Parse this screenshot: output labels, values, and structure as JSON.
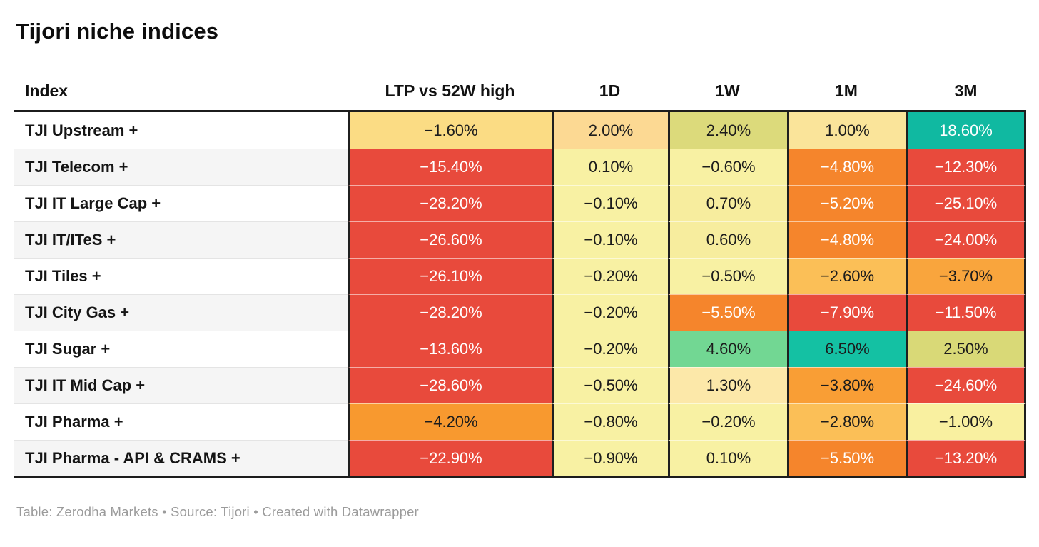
{
  "title": "Tijori niche indices",
  "footer": "Table: Zerodha Markets • Source: Tijori • Created with Datawrapper",
  "palette": {
    "strong_negative_red": "#e84a3c",
    "negative_orange": "#f5852c",
    "mild_negative_amber": "#f8992f",
    "light_amber": "#fbbf57",
    "near_zero_yellow": "#f8f1a3",
    "mild_positive_olive": "#dcda7b",
    "positive_green": "#72d793",
    "strong_positive_teal": "#10b9a1"
  },
  "chart_data": {
    "type": "table",
    "title": "Tijori niche indices",
    "columns": [
      "Index",
      "LTP vs 52W high",
      "1D",
      "1W",
      "1M",
      "3M"
    ],
    "rows": [
      {
        "name": "TJI Upstream +",
        "cells": [
          {
            "value": "−1.60%",
            "bg": "#fbdc84",
            "fg": "#1c1c1c"
          },
          {
            "value": "2.00%",
            "bg": "#fcd993",
            "fg": "#1c1c1c"
          },
          {
            "value": "2.40%",
            "bg": "#dcda7b",
            "fg": "#1c1c1c"
          },
          {
            "value": "1.00%",
            "bg": "#fae49a",
            "fg": "#1c1c1c"
          },
          {
            "value": "18.60%",
            "bg": "#10b9a1",
            "fg": "#ffffff"
          }
        ]
      },
      {
        "name": "TJI Telecom +",
        "cells": [
          {
            "value": "−15.40%",
            "bg": "#e84a3c",
            "fg": "#ffffff"
          },
          {
            "value": "0.10%",
            "bg": "#f8f1a3",
            "fg": "#1c1c1c"
          },
          {
            "value": "−0.60%",
            "bg": "#f8f1a3",
            "fg": "#1c1c1c"
          },
          {
            "value": "−4.80%",
            "bg": "#f5852c",
            "fg": "#ffffff"
          },
          {
            "value": "−12.30%",
            "bg": "#e84a3c",
            "fg": "#ffffff"
          }
        ]
      },
      {
        "name": "TJI IT Large Cap +",
        "cells": [
          {
            "value": "−28.20%",
            "bg": "#e84a3c",
            "fg": "#ffffff"
          },
          {
            "value": "−0.10%",
            "bg": "#f8f1a3",
            "fg": "#1c1c1c"
          },
          {
            "value": "0.70%",
            "bg": "#f7ed9e",
            "fg": "#1c1c1c"
          },
          {
            "value": "−5.20%",
            "bg": "#f5852c",
            "fg": "#ffffff"
          },
          {
            "value": "−25.10%",
            "bg": "#e84a3c",
            "fg": "#ffffff"
          }
        ]
      },
      {
        "name": "TJI IT/ITeS +",
        "cells": [
          {
            "value": "−26.60%",
            "bg": "#e84a3c",
            "fg": "#ffffff"
          },
          {
            "value": "−0.10%",
            "bg": "#f8f1a3",
            "fg": "#1c1c1c"
          },
          {
            "value": "0.60%",
            "bg": "#f7ed9e",
            "fg": "#1c1c1c"
          },
          {
            "value": "−4.80%",
            "bg": "#f5852c",
            "fg": "#ffffff"
          },
          {
            "value": "−24.00%",
            "bg": "#e84a3c",
            "fg": "#ffffff"
          }
        ]
      },
      {
        "name": "TJI Tiles +",
        "cells": [
          {
            "value": "−26.10%",
            "bg": "#e84a3c",
            "fg": "#ffffff"
          },
          {
            "value": "−0.20%",
            "bg": "#f8f1a3",
            "fg": "#1c1c1c"
          },
          {
            "value": "−0.50%",
            "bg": "#f8f1a3",
            "fg": "#1c1c1c"
          },
          {
            "value": "−2.60%",
            "bg": "#fbbf57",
            "fg": "#1c1c1c"
          },
          {
            "value": "−3.70%",
            "bg": "#f9a53d",
            "fg": "#1c1c1c"
          }
        ]
      },
      {
        "name": "TJI City Gas +",
        "cells": [
          {
            "value": "−28.20%",
            "bg": "#e84a3c",
            "fg": "#ffffff"
          },
          {
            "value": "−0.20%",
            "bg": "#f8f1a3",
            "fg": "#1c1c1c"
          },
          {
            "value": "−5.50%",
            "bg": "#f5852c",
            "fg": "#ffffff"
          },
          {
            "value": "−7.90%",
            "bg": "#e84a3c",
            "fg": "#ffffff"
          },
          {
            "value": "−11.50%",
            "bg": "#e84a3c",
            "fg": "#ffffff"
          }
        ]
      },
      {
        "name": "TJI Sugar +",
        "cells": [
          {
            "value": "−13.60%",
            "bg": "#e84a3c",
            "fg": "#ffffff"
          },
          {
            "value": "−0.20%",
            "bg": "#f8f1a3",
            "fg": "#1c1c1c"
          },
          {
            "value": "4.60%",
            "bg": "#72d793",
            "fg": "#1c1c1c"
          },
          {
            "value": "6.50%",
            "bg": "#14c1a3",
            "fg": "#1c1c1c"
          },
          {
            "value": "2.50%",
            "bg": "#d9d977",
            "fg": "#1c1c1c"
          }
        ]
      },
      {
        "name": "TJI IT Mid Cap +",
        "cells": [
          {
            "value": "−28.60%",
            "bg": "#e84a3c",
            "fg": "#ffffff"
          },
          {
            "value": "−0.50%",
            "bg": "#f8f1a3",
            "fg": "#1c1c1c"
          },
          {
            "value": "1.30%",
            "bg": "#fce8a9",
            "fg": "#1c1c1c"
          },
          {
            "value": "−3.80%",
            "bg": "#f99e35",
            "fg": "#1c1c1c"
          },
          {
            "value": "−24.60%",
            "bg": "#e84a3c",
            "fg": "#ffffff"
          }
        ]
      },
      {
        "name": "TJI Pharma +",
        "cells": [
          {
            "value": "−4.20%",
            "bg": "#f8992f",
            "fg": "#1c1c1c"
          },
          {
            "value": "−0.80%",
            "bg": "#f8f1a3",
            "fg": "#1c1c1c"
          },
          {
            "value": "−0.20%",
            "bg": "#f8f1a3",
            "fg": "#1c1c1c"
          },
          {
            "value": "−2.80%",
            "bg": "#fbbf57",
            "fg": "#1c1c1c"
          },
          {
            "value": "−1.00%",
            "bg": "#f9f0a0",
            "fg": "#1c1c1c"
          }
        ]
      },
      {
        "name": "TJI Pharma - API & CRAMS +",
        "cells": [
          {
            "value": "−22.90%",
            "bg": "#e84a3c",
            "fg": "#ffffff"
          },
          {
            "value": "−0.90%",
            "bg": "#f8f1a3",
            "fg": "#1c1c1c"
          },
          {
            "value": "0.10%",
            "bg": "#f8f1a3",
            "fg": "#1c1c1c"
          },
          {
            "value": "−5.50%",
            "bg": "#f5852c",
            "fg": "#ffffff"
          },
          {
            "value": "−13.20%",
            "bg": "#e84a3c",
            "fg": "#ffffff"
          }
        ]
      }
    ]
  }
}
